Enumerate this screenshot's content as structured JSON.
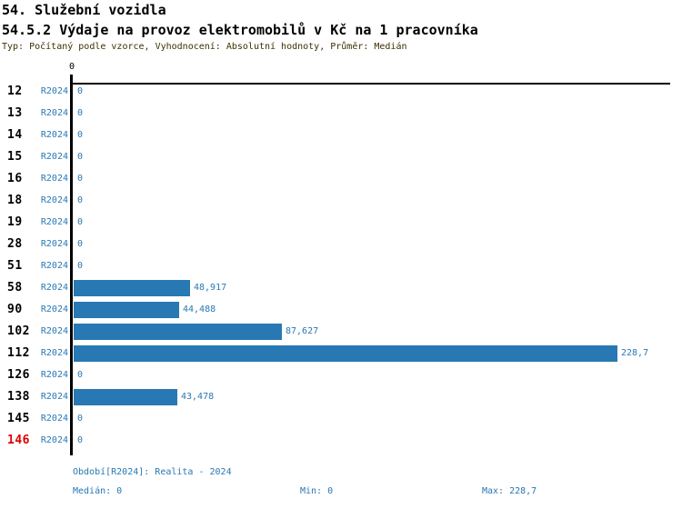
{
  "title_line1": "54. Služební vozidla",
  "title_line2": "54.5.2 Výdaje na provoz elektromobilů v Kč na 1 pracovníka",
  "subtitle": "Typ: Počítaný podle vzorce, Vyhodnocení: Absolutní hodnoty, Průměr: Medián",
  "axis": {
    "zero_label": "0"
  },
  "colors": {
    "bar_blue": "#2878b4",
    "label_blue": "#2878b4",
    "highlight_red": "#dd0000",
    "title_black": "#000000",
    "subtitle_dark": "#3d3000",
    "background": "#ffffff"
  },
  "chart_data": {
    "type": "bar",
    "orientation": "horizontal",
    "title": "54.5.2 Výdaje na provoz elektromobilů v Kč na 1 pracovníka",
    "subtitle": "Typ: Počítaný podle vzorce, Vyhodnocení: Absolutní hodnoty, Průměr: Medián",
    "categories": [
      "12",
      "13",
      "14",
      "15",
      "16",
      "18",
      "19",
      "28",
      "51",
      "58",
      "90",
      "102",
      "112",
      "126",
      "138",
      "145",
      "146"
    ],
    "period_label": "R2024",
    "values": [
      0,
      0,
      0,
      0,
      0,
      0,
      0,
      0,
      0,
      48.917,
      44.488,
      87.627,
      228.7,
      0,
      43.478,
      0,
      0
    ],
    "value_labels": [
      "0",
      "0",
      "0",
      "0",
      "0",
      "0",
      "0",
      "0",
      "0",
      "48,917",
      "44,488",
      "87,627",
      "228,7",
      "0",
      "43,478",
      "0",
      "0"
    ],
    "highlighted_categories": [
      "146"
    ],
    "xlim": [
      0,
      252
    ],
    "x_tick_labels": [
      "0"
    ],
    "grid": false,
    "legend_position": "none",
    "stats": {
      "median": 0,
      "min": 0,
      "max": 228.7
    }
  },
  "footer": {
    "period_line": "Období[R2024]: Realita - 2024",
    "median_label": "Medián: 0",
    "min_label": "Min: 0",
    "max_label": "Max: 228,7"
  }
}
